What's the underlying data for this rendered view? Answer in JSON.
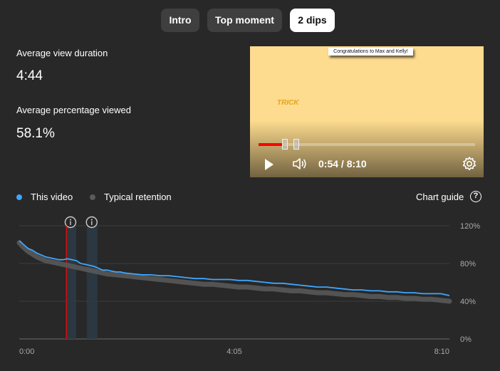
{
  "tabs": [
    {
      "label": "Intro",
      "active": false
    },
    {
      "label": "Top moment",
      "active": false
    },
    {
      "label": "2 dips",
      "active": true
    }
  ],
  "stats": {
    "avg_view_duration_label": "Average view duration",
    "avg_view_duration_value": "4:44",
    "avg_pct_viewed_label": "Average percentage viewed",
    "avg_pct_viewed_value": "58.1%"
  },
  "player": {
    "banner_text": "Congratulations to Max and Kelly!",
    "logo_text": "TRICK",
    "current_time": "0:54",
    "duration": "8:10",
    "time_readout": "0:54 / 8:10",
    "progress_fraction": 0.11,
    "play_icon": "play-icon",
    "volume_icon": "volume-icon",
    "settings_icon": "gear-icon"
  },
  "legend": {
    "this_video": "This video",
    "typical": "Typical retention",
    "this_video_color": "#3ea6ff",
    "typical_color": "#5a5a5a"
  },
  "chart_guide": {
    "label": "Chart guide",
    "icon": "help-icon"
  },
  "colors": {
    "background": "#282828",
    "accent_red": "#ff0000",
    "dip_band": "#2b3a44"
  },
  "chart_data": {
    "type": "line",
    "xlabel": "",
    "ylabel": "",
    "x_ticks": [
      "0:00",
      "4:05",
      "8:10"
    ],
    "x_range_seconds": [
      0,
      490
    ],
    "y_ticks": [
      "120%",
      "80%",
      "40%",
      "0%"
    ],
    "ylim": [
      0,
      120
    ],
    "grid": true,
    "legend_position": "top-left",
    "dip_marker_seconds": [
      60,
      85
    ],
    "current_time_seconds": 54,
    "series": [
      {
        "name": "This video",
        "color": "#3ea6ff",
        "points": [
          [
            0,
            104
          ],
          [
            5,
            100
          ],
          [
            10,
            96
          ],
          [
            15,
            94
          ],
          [
            20,
            91
          ],
          [
            25,
            89
          ],
          [
            30,
            87
          ],
          [
            35,
            86
          ],
          [
            40,
            85
          ],
          [
            45,
            84
          ],
          [
            50,
            84
          ],
          [
            55,
            85
          ],
          [
            60,
            84
          ],
          [
            65,
            83
          ],
          [
            70,
            80
          ],
          [
            75,
            79
          ],
          [
            80,
            78
          ],
          [
            85,
            77
          ],
          [
            90,
            75
          ],
          [
            95,
            73
          ],
          [
            100,
            73
          ],
          [
            105,
            72
          ],
          [
            110,
            71
          ],
          [
            115,
            71
          ],
          [
            120,
            70
          ],
          [
            130,
            69
          ],
          [
            140,
            68
          ],
          [
            150,
            68
          ],
          [
            160,
            67
          ],
          [
            170,
            67
          ],
          [
            180,
            66
          ],
          [
            190,
            65
          ],
          [
            200,
            64
          ],
          [
            210,
            64
          ],
          [
            220,
            63
          ],
          [
            230,
            63
          ],
          [
            240,
            63
          ],
          [
            250,
            62
          ],
          [
            260,
            62
          ],
          [
            270,
            61
          ],
          [
            280,
            60
          ],
          [
            290,
            59
          ],
          [
            300,
            59
          ],
          [
            310,
            58
          ],
          [
            320,
            57
          ],
          [
            330,
            56
          ],
          [
            340,
            55
          ],
          [
            350,
            55
          ],
          [
            360,
            54
          ],
          [
            370,
            53
          ],
          [
            380,
            52
          ],
          [
            390,
            52
          ],
          [
            400,
            51
          ],
          [
            410,
            51
          ],
          [
            420,
            50
          ],
          [
            430,
            50
          ],
          [
            440,
            49
          ],
          [
            450,
            49
          ],
          [
            460,
            48
          ],
          [
            470,
            48
          ],
          [
            480,
            48
          ],
          [
            485,
            47
          ],
          [
            490,
            46
          ]
        ]
      },
      {
        "name": "Typical retention",
        "color": "#5a5a5a",
        "points": [
          [
            0,
            102
          ],
          [
            5,
            97
          ],
          [
            10,
            93
          ],
          [
            15,
            90
          ],
          [
            20,
            87
          ],
          [
            25,
            85
          ],
          [
            30,
            83
          ],
          [
            35,
            82
          ],
          [
            40,
            81
          ],
          [
            45,
            80
          ],
          [
            50,
            79
          ],
          [
            55,
            78
          ],
          [
            60,
            77
          ],
          [
            65,
            76
          ],
          [
            70,
            75
          ],
          [
            75,
            74
          ],
          [
            80,
            73
          ],
          [
            85,
            72
          ],
          [
            90,
            71
          ],
          [
            95,
            70
          ],
          [
            100,
            69
          ],
          [
            110,
            68
          ],
          [
            120,
            67
          ],
          [
            130,
            66
          ],
          [
            140,
            65
          ],
          [
            150,
            64
          ],
          [
            160,
            63
          ],
          [
            170,
            62
          ],
          [
            180,
            61
          ],
          [
            190,
            60
          ],
          [
            200,
            59
          ],
          [
            210,
            58
          ],
          [
            220,
            58
          ],
          [
            230,
            57
          ],
          [
            240,
            56
          ],
          [
            250,
            55
          ],
          [
            260,
            55
          ],
          [
            270,
            54
          ],
          [
            280,
            53
          ],
          [
            290,
            53
          ],
          [
            300,
            52
          ],
          [
            310,
            51
          ],
          [
            320,
            51
          ],
          [
            330,
            50
          ],
          [
            340,
            49
          ],
          [
            350,
            49
          ],
          [
            360,
            48
          ],
          [
            370,
            47
          ],
          [
            380,
            47
          ],
          [
            390,
            46
          ],
          [
            400,
            45
          ],
          [
            410,
            45
          ],
          [
            420,
            44
          ],
          [
            430,
            44
          ],
          [
            440,
            43
          ],
          [
            450,
            43
          ],
          [
            460,
            42
          ],
          [
            470,
            42
          ],
          [
            480,
            41
          ],
          [
            490,
            40
          ]
        ]
      }
    ]
  }
}
